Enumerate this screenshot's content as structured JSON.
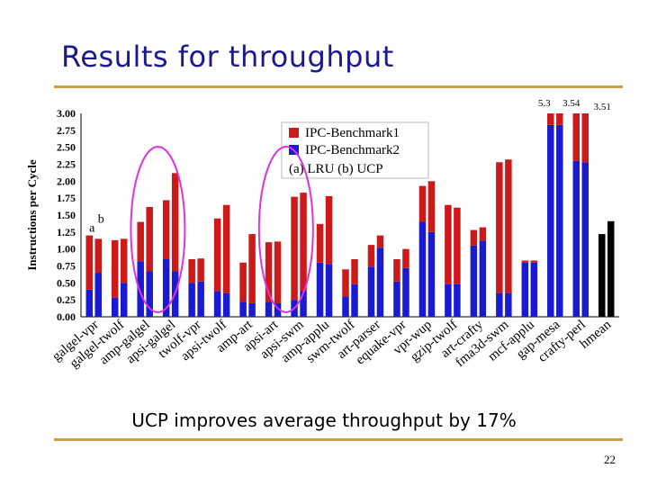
{
  "slide": {
    "title": "Results for throughput",
    "caption": "UCP improves average throughput by 17%",
    "page_number": "22"
  },
  "chart_data": {
    "type": "bar",
    "ylabel": "Instructions per Cycle",
    "ylim": [
      0,
      3
    ],
    "yticks": [
      "0.00",
      "0.25",
      "0.50",
      "0.75",
      "1.00",
      "1.25",
      "1.50",
      "1.75",
      "2.00",
      "2.25",
      "2.50",
      "2.75",
      "3.00"
    ],
    "legend": {
      "entries": [
        "IPC-Benchmark1",
        "IPC-Benchmark2"
      ],
      "note": "(a) LRU (b) UCP",
      "position": "top-left"
    },
    "colors": {
      "benchmark1": "#cc1a1a",
      "benchmark2": "#1a1ad0",
      "hmean": "#000000"
    },
    "annotations": {
      "a": "a",
      "b": "b",
      "clip_labels": [
        "5.3",
        "3.54",
        "3.51"
      ]
    },
    "categories": [
      "galgel-vpr",
      "galgel-twolf",
      "amp-galgel",
      "apsi-galgel",
      "twolf-vpr",
      "apsi-twolf",
      "amp-art",
      "apsi-art",
      "apsi-swm",
      "amp-applu",
      "swm-twolf",
      "art-parser",
      "equake-vpr",
      "vpr-wup",
      "gzip-twolf",
      "art-crafty",
      "fma3d-swm",
      "mcf-applu",
      "gap-mesa",
      "crafty-perl",
      "hmean"
    ],
    "series": [
      {
        "name": "IPC-Benchmark2",
        "values": [
          [
            0.4,
            0.65
          ],
          [
            0.28,
            0.5
          ],
          [
            0.82,
            0.67
          ],
          [
            0.85,
            0.67
          ],
          [
            0.5,
            0.52
          ],
          [
            0.38,
            0.35
          ],
          [
            0.22,
            0.2
          ],
          [
            0.22,
            0.2
          ],
          [
            0.25,
            0.38
          ],
          [
            0.8,
            0.78
          ],
          [
            0.3,
            0.48
          ],
          [
            0.74,
            1.02
          ],
          [
            0.52,
            0.72
          ],
          [
            1.4,
            1.25
          ],
          [
            0.48,
            0.48
          ],
          [
            1.05,
            1.12
          ],
          [
            0.35,
            0.35
          ],
          [
            0.8,
            0.8
          ],
          [
            2.83,
            2.83
          ],
          [
            2.3,
            2.28
          ],
          [
            1.22,
            1.41
          ]
        ]
      },
      {
        "name": "IPC-Benchmark1",
        "values": [
          [
            0.8,
            0.5
          ],
          [
            0.85,
            0.65
          ],
          [
            0.58,
            0.95
          ],
          [
            0.87,
            1.45
          ],
          [
            0.35,
            0.34
          ],
          [
            1.07,
            1.3
          ],
          [
            0.58,
            1.02
          ],
          [
            0.88,
            0.91
          ],
          [
            1.52,
            1.45
          ],
          [
            0.57,
            1.0
          ],
          [
            0.4,
            0.37
          ],
          [
            0.32,
            0.18
          ],
          [
            0.33,
            0.28
          ],
          [
            0.53,
            0.75
          ],
          [
            1.17,
            1.13
          ],
          [
            0.23,
            0.2
          ],
          [
            1.93,
            1.97
          ],
          [
            0.03,
            0.03
          ],
          [
            2.47,
            0.71
          ],
          [
            1.24,
            1.26
          ],
          [
            0.0,
            0.0
          ]
        ]
      }
    ],
    "highlight_ellipses": [
      "apsi-galgel",
      "apsi-swm"
    ]
  }
}
